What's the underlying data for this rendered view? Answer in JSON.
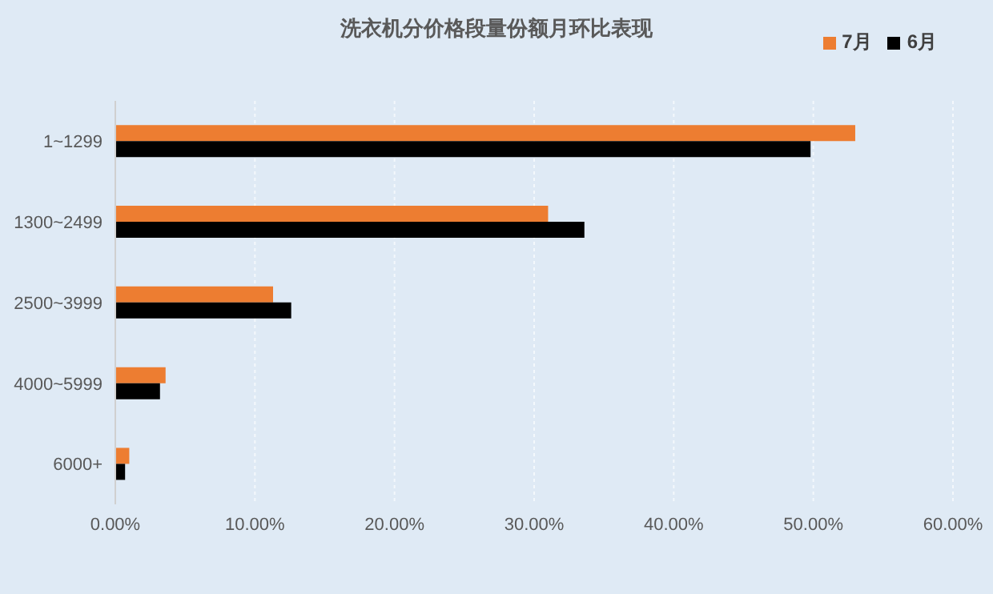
{
  "chart_data": {
    "type": "bar",
    "orientation": "horizontal",
    "title": "洗衣机分价格段量份额月环比表现",
    "categories": [
      "1~1299",
      "1300~2499",
      "2500~3999",
      "4000~5999",
      "6000+"
    ],
    "series": [
      {
        "name": "7月",
        "color": "#ed7d31",
        "values": [
          53.0,
          31.0,
          11.3,
          3.6,
          1.0
        ]
      },
      {
        "name": "6月",
        "color": "#000000",
        "values": [
          49.8,
          33.6,
          12.6,
          3.2,
          0.7
        ]
      }
    ],
    "xlim": [
      0,
      60
    ],
    "xticks": [
      {
        "value": 0,
        "label": "0.00%"
      },
      {
        "value": 10,
        "label": "10.00%"
      },
      {
        "value": 20,
        "label": "20.00%"
      },
      {
        "value": 30,
        "label": "30.00%"
      },
      {
        "value": 40,
        "label": "40.00%"
      },
      {
        "value": 50,
        "label": "50.00%"
      },
      {
        "value": 60,
        "label": "60.00%"
      }
    ],
    "grid": "x",
    "legend": "top right"
  }
}
